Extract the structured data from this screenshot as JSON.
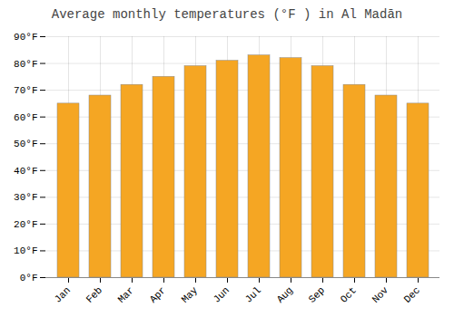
{
  "chart_data": {
    "type": "bar",
    "title": "Average monthly temperatures (°F ) in Al Madān",
    "categories": [
      "Jan",
      "Feb",
      "Mar",
      "Apr",
      "May",
      "Jun",
      "Jul",
      "Aug",
      "Sep",
      "Oct",
      "Nov",
      "Dec"
    ],
    "values": [
      65,
      68,
      72,
      75,
      79,
      81,
      83,
      82,
      79,
      72,
      68,
      65
    ],
    "color": "#F5A623",
    "ylim": [
      0,
      90
    ],
    "yticks": [
      {
        "value": 0,
        "label": "0°F"
      },
      {
        "value": 10,
        "label": "10°F"
      },
      {
        "value": 20,
        "label": "20°F"
      },
      {
        "value": 30,
        "label": "30°F"
      },
      {
        "value": 40,
        "label": "40°F"
      },
      {
        "value": 50,
        "label": "50°F"
      },
      {
        "value": 60,
        "label": "60°F"
      },
      {
        "value": 70,
        "label": "70°F"
      },
      {
        "value": 80,
        "label": "80°F"
      },
      {
        "value": 90,
        "label": "90°F"
      }
    ],
    "grid": true
  }
}
